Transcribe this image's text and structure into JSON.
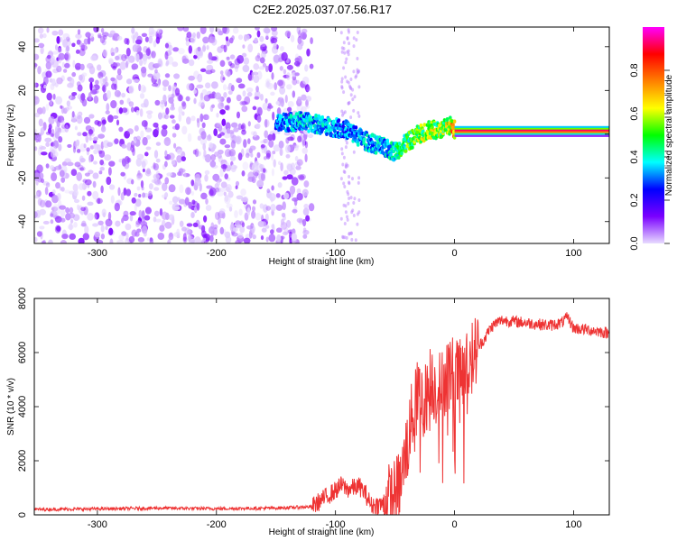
{
  "title": "C2E2.2025.037.07.56.R17",
  "chart_data": [
    {
      "type": "heatmap",
      "xlabel": "Height of straight line (km)",
      "ylabel": "Frequency (Hz)",
      "xlim": [
        -353,
        130
      ],
      "ylim": [
        -50,
        49
      ],
      "xticks": [
        -300,
        -200,
        -100,
        0,
        100
      ],
      "yticks": [
        -40,
        -20,
        0,
        20,
        40
      ],
      "grid": false,
      "colorbar": {
        "label": "Normalized spectral amplitude",
        "range": [
          0,
          1
        ],
        "ticks": [
          0.0,
          0.2,
          0.4,
          0.6,
          0.8
        ],
        "colors": [
          "#e8dcff",
          "#7a00ff",
          "#0000ff",
          "#00ffff",
          "#00ff00",
          "#ffff00",
          "#ff8000",
          "#ff0000",
          "#ff00ff"
        ]
      },
      "signal_track": {
        "x": [
          -150,
          -130,
          -110,
          -90,
          -75,
          -60,
          -50,
          -40,
          -30,
          -20,
          -10,
          -3,
          0,
          50,
          130
        ],
        "y": [
          5,
          6,
          4,
          2,
          -3,
          -6,
          -8,
          -4,
          0,
          2,
          2,
          4,
          2,
          2,
          2
        ],
        "amplitude": [
          0.35,
          0.4,
          0.4,
          0.35,
          0.4,
          0.4,
          0.45,
          0.55,
          0.6,
          0.65,
          0.65,
          0.7,
          0.9,
          0.95,
          0.95
        ]
      },
      "noise_region_x": [
        -353,
        -140
      ]
    },
    {
      "type": "line",
      "xlabel": "Height of straight line (km)",
      "ylabel": "SNR (10 * v/v)",
      "xlim": [
        -353,
        130
      ],
      "ylim": [
        0,
        8000
      ],
      "xticks": [
        -300,
        -200,
        -100,
        0,
        100
      ],
      "yticks": [
        0,
        2000,
        4000,
        6000,
        8000
      ],
      "grid": false,
      "series": [
        {
          "color": "#ee3333",
          "x": [
            -353,
            -300,
            -250,
            -200,
            -150,
            -120,
            -100,
            -95,
            -90,
            -85,
            -80,
            -75,
            -70,
            -60,
            -50,
            -45,
            -40,
            -35,
            -30,
            -25,
            -20,
            -15,
            -10,
            -5,
            0,
            5,
            10,
            15,
            20,
            25,
            30,
            35,
            40,
            50,
            60,
            70,
            80,
            90,
            95,
            100,
            110,
            120,
            130
          ],
          "y": [
            200,
            220,
            250,
            230,
            250,
            300,
            900,
            1100,
            950,
            1000,
            1050,
            800,
            350,
            400,
            700,
            1200,
            2500,
            3800,
            4500,
            4200,
            5000,
            4600,
            4800,
            5400,
            5200,
            5100,
            5400,
            5900,
            6200,
            6500,
            6900,
            7100,
            7200,
            7150,
            7100,
            7050,
            7000,
            7100,
            7300,
            6900,
            6850,
            6800,
            6700
          ]
        }
      ]
    }
  ]
}
